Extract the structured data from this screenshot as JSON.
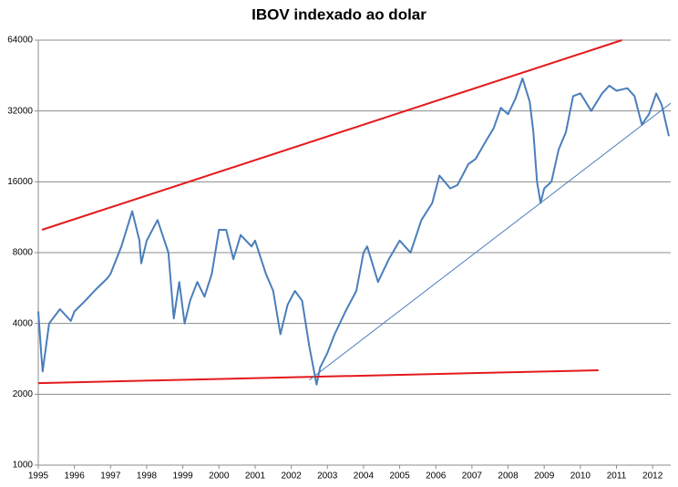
{
  "chart_data": {
    "type": "line",
    "title": "IBOV indexado ao dolar",
    "log_scale_y": true,
    "grid": true,
    "xlim": [
      1995,
      2012.5
    ],
    "xticks": [
      1995,
      1996,
      1997,
      1998,
      1999,
      2000,
      2001,
      2002,
      2003,
      2004,
      2005,
      2006,
      2007,
      2008,
      2009,
      2010,
      2011,
      2012
    ],
    "ylim": [
      1000,
      64000
    ],
    "yticks": [
      1000,
      2000,
      4000,
      8000,
      16000,
      32000,
      64000
    ],
    "series": [
      {
        "color": "#4a7ebb",
        "x": [
          1995.0,
          1995.08,
          1995.12,
          1995.3,
          1995.6,
          1995.9,
          1996.0,
          1996.3,
          1996.6,
          1996.9,
          1997.0,
          1997.3,
          1997.6,
          1997.8,
          1997.85,
          1998.0,
          1998.3,
          1998.6,
          1998.75,
          1998.9,
          1999.05,
          1999.2,
          1999.4,
          1999.6,
          1999.8,
          2000.0,
          2000.2,
          2000.4,
          2000.6,
          2000.9,
          2001.0,
          2001.3,
          2001.5,
          2001.7,
          2001.9,
          2002.1,
          2002.3,
          2002.5,
          2002.7,
          2002.8,
          2003.0,
          2003.2,
          2003.5,
          2003.8,
          2004.0,
          2004.1,
          2004.4,
          2004.7,
          2005.0,
          2005.3,
          2005.6,
          2005.9,
          2006.1,
          2006.4,
          2006.6,
          2006.9,
          2007.1,
          2007.4,
          2007.6,
          2007.8,
          2008.0,
          2008.2,
          2008.4,
          2008.6,
          2008.7,
          2008.8,
          2008.9,
          2009.0,
          2009.2,
          2009.4,
          2009.6,
          2009.8,
          2010.0,
          2010.3,
          2010.6,
          2010.8,
          2011.0,
          2011.3,
          2011.5,
          2011.7,
          2011.9,
          2012.1,
          2012.25,
          2012.45
        ],
        "values": [
          4500,
          3000,
          2500,
          4000,
          4600,
          4100,
          4500,
          5000,
          5600,
          6200,
          6500,
          8500,
          12000,
          9000,
          7200,
          9000,
          11000,
          8000,
          4200,
          6000,
          4000,
          5000,
          6000,
          5200,
          6500,
          10000,
          10000,
          7500,
          9500,
          8500,
          9000,
          6500,
          5500,
          3600,
          4800,
          5500,
          5000,
          3200,
          2200,
          2600,
          3000,
          3600,
          4500,
          5500,
          8000,
          8500,
          6000,
          7500,
          9000,
          8000,
          11000,
          13000,
          17000,
          15000,
          15500,
          19000,
          20000,
          24000,
          27000,
          33000,
          31000,
          36000,
          44000,
          35000,
          26000,
          16000,
          13000,
          15000,
          16000,
          22000,
          26000,
          37000,
          38000,
          32000,
          38000,
          41000,
          39000,
          40000,
          37000,
          28000,
          31000,
          38000,
          34000,
          25000
        ]
      }
    ],
    "trendlines": [
      {
        "color": "#e31a1c",
        "x": [
          1995.1,
          2011.15
        ],
        "values": [
          10000,
          64000
        ]
      },
      {
        "color": "#e31a1c",
        "x": [
          1995.0,
          2010.5
        ],
        "values": [
          2230,
          2530
        ]
      },
      {
        "color": "#4a7ebb",
        "x": [
          2002.5,
          2012.5
        ],
        "values": [
          2300,
          34500
        ]
      }
    ]
  }
}
